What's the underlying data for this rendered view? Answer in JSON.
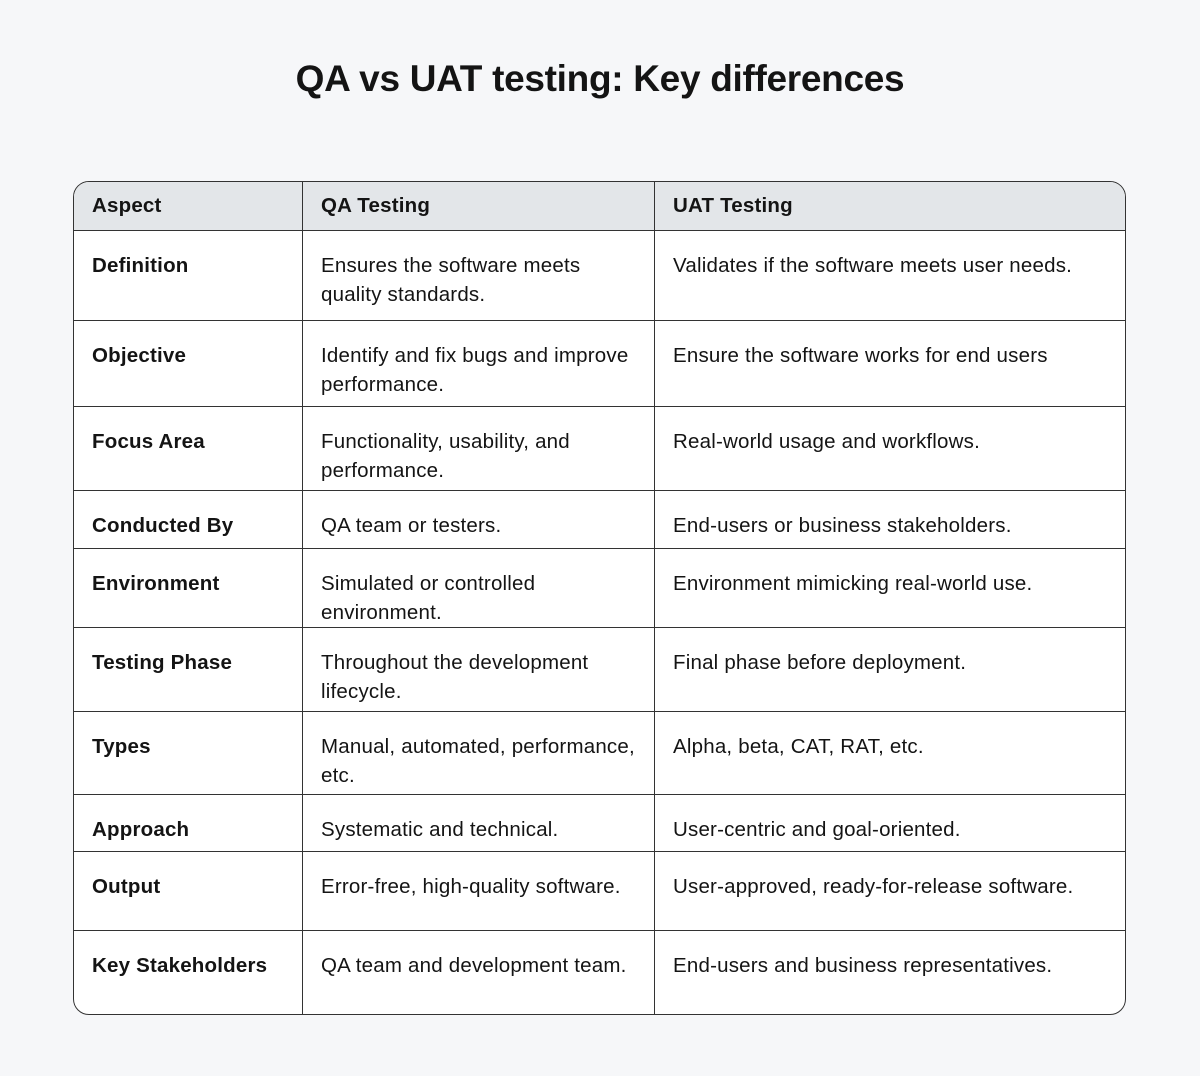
{
  "title": "QA vs UAT testing: Key differences",
  "headers": [
    "Aspect",
    "QA Testing",
    "UAT Testing"
  ],
  "rows": [
    [
      "Definition",
      "Ensures the software meets quality standards.",
      "Validates if the software meets user needs."
    ],
    [
      "Objective",
      "Identify and fix bugs and improve performance.",
      "Ensure the software works for end users"
    ],
    [
      "Focus Area",
      "Functionality, usability, and performance.",
      "Real-world usage and workflows."
    ],
    [
      "Conducted By",
      "QA team or testers.",
      "End-users or business stakeholders."
    ],
    [
      "Environment",
      "Simulated or controlled environment.",
      "Environment mimicking real-world use."
    ],
    [
      "Testing Phase",
      "Throughout the development lifecycle.",
      "Final phase before deployment."
    ],
    [
      "Types",
      "Manual, automated, performance, etc.",
      "Alpha, beta, CAT, RAT, etc."
    ],
    [
      "Approach",
      "Systematic and technical.",
      "User-centric and goal-oriented."
    ],
    [
      "Output",
      "Error-free, high-quality software.",
      "User-approved, ready-for-release software."
    ],
    [
      "Key Stakeholders",
      "QA team and development team.",
      "End-users and business representatives."
    ]
  ]
}
